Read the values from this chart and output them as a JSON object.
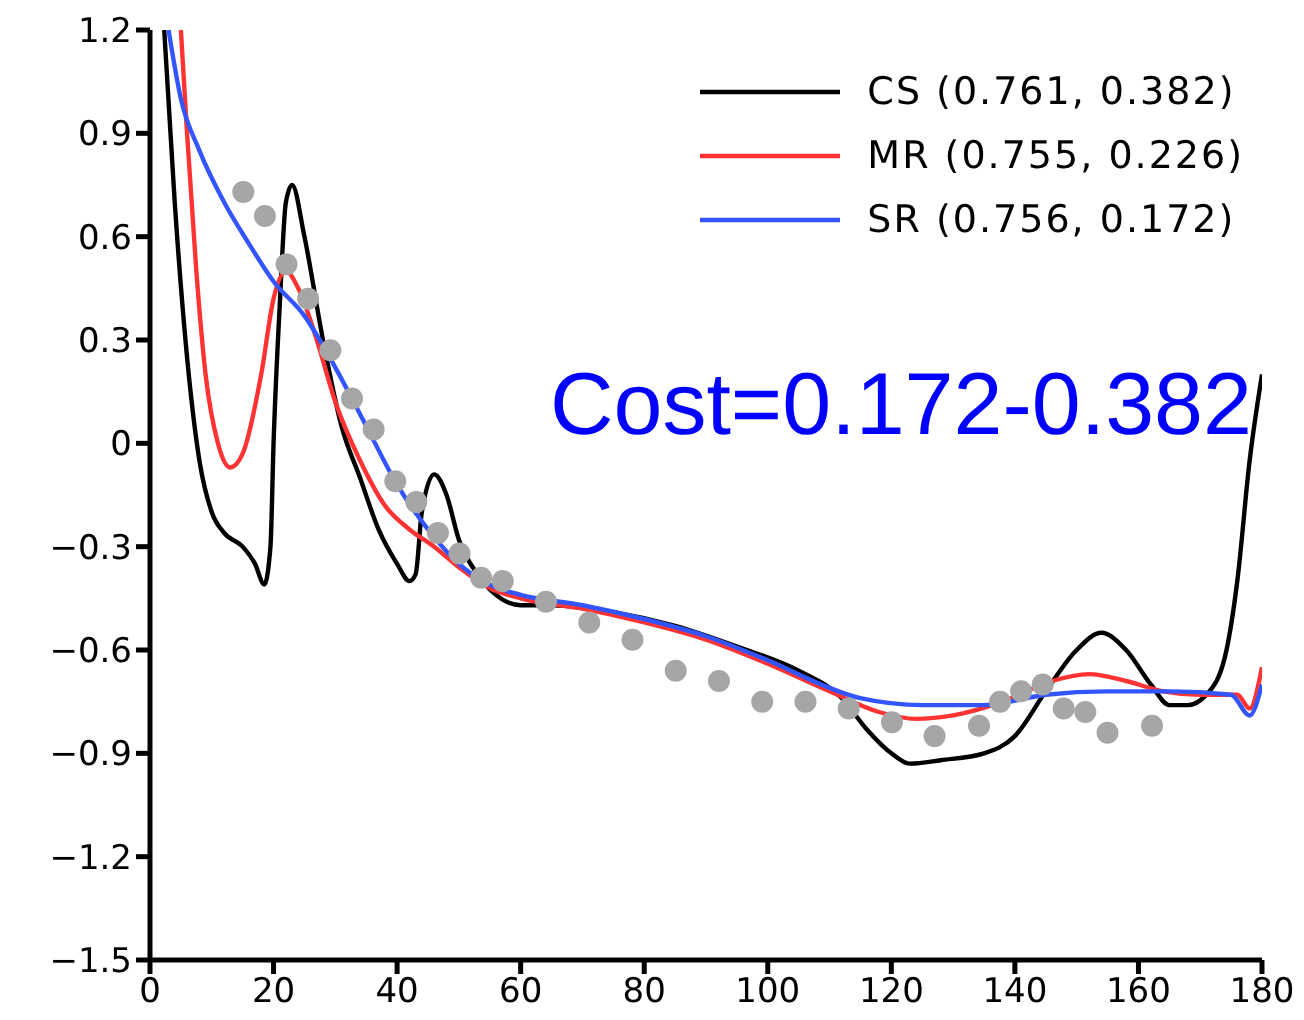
{
  "chart_data": {
    "type": "line",
    "xlim": [
      0,
      180
    ],
    "xticks": [
      0,
      20,
      40,
      60,
      80,
      100,
      120,
      140,
      160,
      180
    ],
    "ylim": [
      -1.5,
      1.2
    ],
    "yticks": [
      -1.5,
      -1.2,
      -0.9,
      -0.6,
      -0.3,
      0,
      0.3,
      0.6,
      0.9,
      1.2
    ],
    "grid": false,
    "legend": "top right",
    "marker": "none",
    "line_style": "solid",
    "annotations": [
      "Cost=0.172-0.382"
    ],
    "series": [
      {
        "name": "CS (0.761, 0.382)",
        "color": "#000000",
        "x": [
          2.3,
          4,
          6,
          8,
          10,
          12,
          15,
          17,
          18.5,
          19.5,
          20,
          21,
          22,
          23,
          25,
          28,
          31,
          34,
          37,
          40,
          42,
          43,
          44,
          46,
          48,
          50,
          53,
          56,
          60,
          65,
          75,
          85,
          95,
          105,
          112,
          116,
          120,
          123,
          128,
          135,
          140,
          145,
          150,
          154,
          158,
          162,
          165,
          168,
          171,
          174,
          176,
          178,
          180
        ],
        "values": [
          1.2,
          0.7,
          0.25,
          -0.05,
          -0.2,
          -0.26,
          -0.3,
          -0.35,
          -0.41,
          -0.3,
          0,
          0.4,
          0.7,
          0.75,
          0.6,
          0.3,
          0.05,
          -0.1,
          -0.25,
          -0.35,
          -0.4,
          -0.38,
          -0.2,
          -0.09,
          -0.15,
          -0.28,
          -0.38,
          -0.44,
          -0.47,
          -0.47,
          -0.49,
          -0.53,
          -0.59,
          -0.66,
          -0.74,
          -0.83,
          -0.9,
          -0.93,
          -0.92,
          -0.9,
          -0.85,
          -0.72,
          -0.6,
          -0.55,
          -0.6,
          -0.7,
          -0.76,
          -0.76,
          -0.73,
          -0.62,
          -0.4,
          -0.05,
          0.2
        ]
      },
      {
        "name": "MR (0.755, 0.226)",
        "color": "#ff3333",
        "x": [
          5,
          6,
          7.5,
          9,
          11,
          13,
          15,
          18,
          20,
          22,
          24,
          27,
          30,
          34,
          38,
          42,
          46,
          50,
          55,
          60,
          70,
          80,
          90,
          100,
          110,
          118,
          124,
          130,
          138,
          146,
          152,
          158,
          164,
          170,
          176,
          178,
          180
        ],
        "values": [
          1.2,
          0.9,
          0.5,
          0.2,
          0,
          -0.07,
          -0.03,
          0.2,
          0.42,
          0.5,
          0.45,
          0.3,
          0.12,
          -0.05,
          -0.18,
          -0.25,
          -0.3,
          -0.36,
          -0.42,
          -0.45,
          -0.48,
          -0.52,
          -0.57,
          -0.64,
          -0.72,
          -0.78,
          -0.8,
          -0.79,
          -0.75,
          -0.69,
          -0.67,
          -0.69,
          -0.72,
          -0.73,
          -0.73,
          -0.77,
          -0.65
        ]
      },
      {
        "name": "SR (0.756, 0.172)",
        "color": "#3355ff",
        "x": [
          3,
          5,
          8,
          12,
          16,
          20,
          25,
          30,
          35,
          40,
          45,
          50,
          55,
          60,
          70,
          80,
          90,
          100,
          110,
          115,
          125,
          135,
          145,
          155,
          165,
          175,
          178,
          180
        ],
        "values": [
          1.2,
          1.0,
          0.85,
          0.7,
          0.58,
          0.47,
          0.37,
          0.22,
          0.05,
          -0.12,
          -0.25,
          -0.35,
          -0.41,
          -0.44,
          -0.47,
          -0.51,
          -0.56,
          -0.63,
          -0.71,
          -0.74,
          -0.76,
          -0.76,
          -0.73,
          -0.72,
          -0.72,
          -0.73,
          -0.79,
          -0.7
        ]
      },
      {
        "type": "scatter",
        "marker": "circle",
        "color": "#a6a6a6",
        "x": [
          15.1,
          18.6,
          22.1,
          25.6,
          29.2,
          32.7,
          36.2,
          39.7,
          43.1,
          46.6,
          50.1,
          53.6,
          57.1,
          64.1,
          71.1,
          78.1,
          85.1,
          92.1,
          99.1,
          106.1,
          113.1,
          120.1,
          127,
          134.2,
          137.6,
          141,
          144.5,
          147.9,
          151.4,
          155,
          162.2
        ],
        "values": [
          0.73,
          0.66,
          0.52,
          0.42,
          0.27,
          0.13,
          0.04,
          -0.11,
          -0.17,
          -0.26,
          -0.32,
          -0.39,
          -0.4,
          -0.46,
          -0.52,
          -0.57,
          -0.66,
          -0.69,
          -0.75,
          -0.75,
          -0.77,
          -0.81,
          -0.85,
          -0.82,
          -0.75,
          -0.72,
          -0.7,
          -0.77,
          -0.78,
          -0.84,
          -0.82
        ]
      }
    ]
  }
}
